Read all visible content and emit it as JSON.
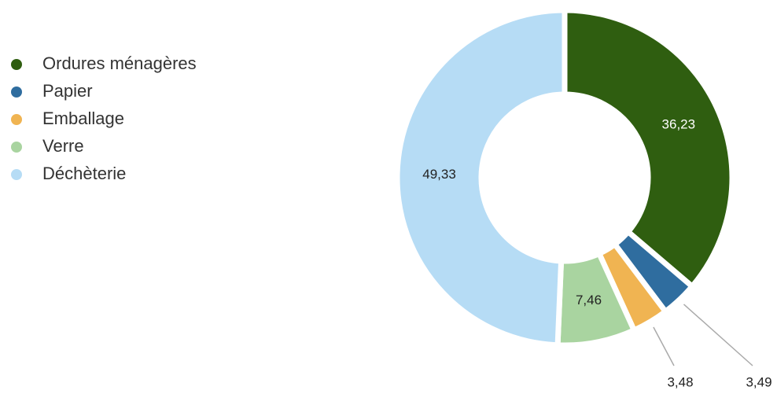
{
  "chart_data": {
    "type": "donut",
    "categories": [
      "Ordures ménagères",
      "Papier",
      "Emballage",
      "Verre",
      "Déchèterie"
    ],
    "values": [
      36.23,
      3.49,
      3.48,
      7.46,
      49.33
    ],
    "value_labels": [
      "36,23",
      "3,49",
      "3,48",
      "7,46",
      "49,33"
    ],
    "colors": [
      "#2f5e10",
      "#2f6d9f",
      "#f0b452",
      "#a9d4a0",
      "#b6dcf5"
    ],
    "legend": "left"
  }
}
